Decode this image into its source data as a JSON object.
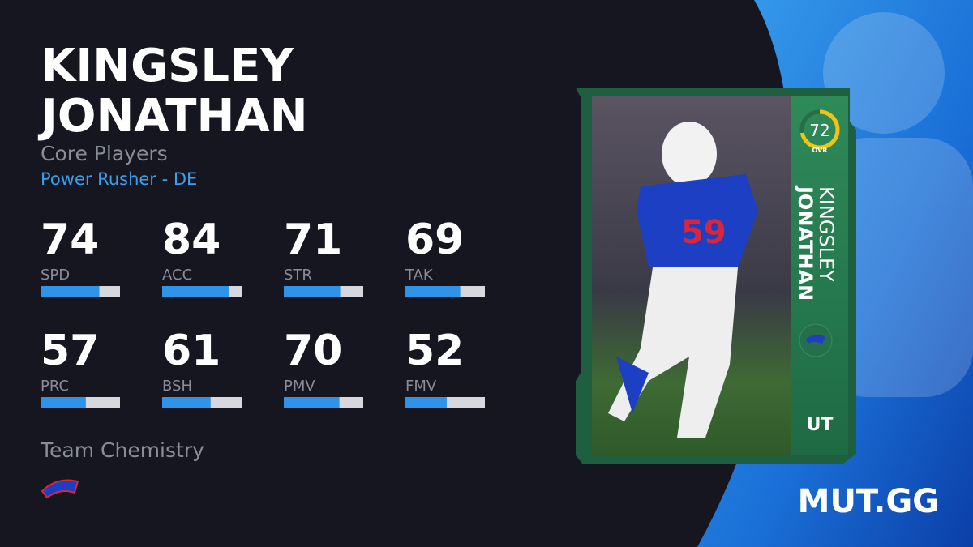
{
  "player": {
    "name_lines": [
      "KINGSLEY",
      "JONATHAN"
    ],
    "program": "Core Players",
    "archetype": "Power Rusher - DE"
  },
  "stats": [
    {
      "label": "SPD",
      "value": 74
    },
    {
      "label": "ACC",
      "value": 84
    },
    {
      "label": "STR",
      "value": 71
    },
    {
      "label": "TAK",
      "value": 69
    },
    {
      "label": "PRC",
      "value": 57
    },
    {
      "label": "BSH",
      "value": 61
    },
    {
      "label": "PMV",
      "value": 70
    },
    {
      "label": "FMV",
      "value": 52
    }
  ],
  "chemistry": {
    "title": "Team Chemistry"
  },
  "card": {
    "ovr": 72,
    "ovr_label": "OVR",
    "first_name": "KINGSLEY",
    "last_name": "JONATHAN",
    "badge": "UT"
  },
  "brand": "MUT.GG"
}
